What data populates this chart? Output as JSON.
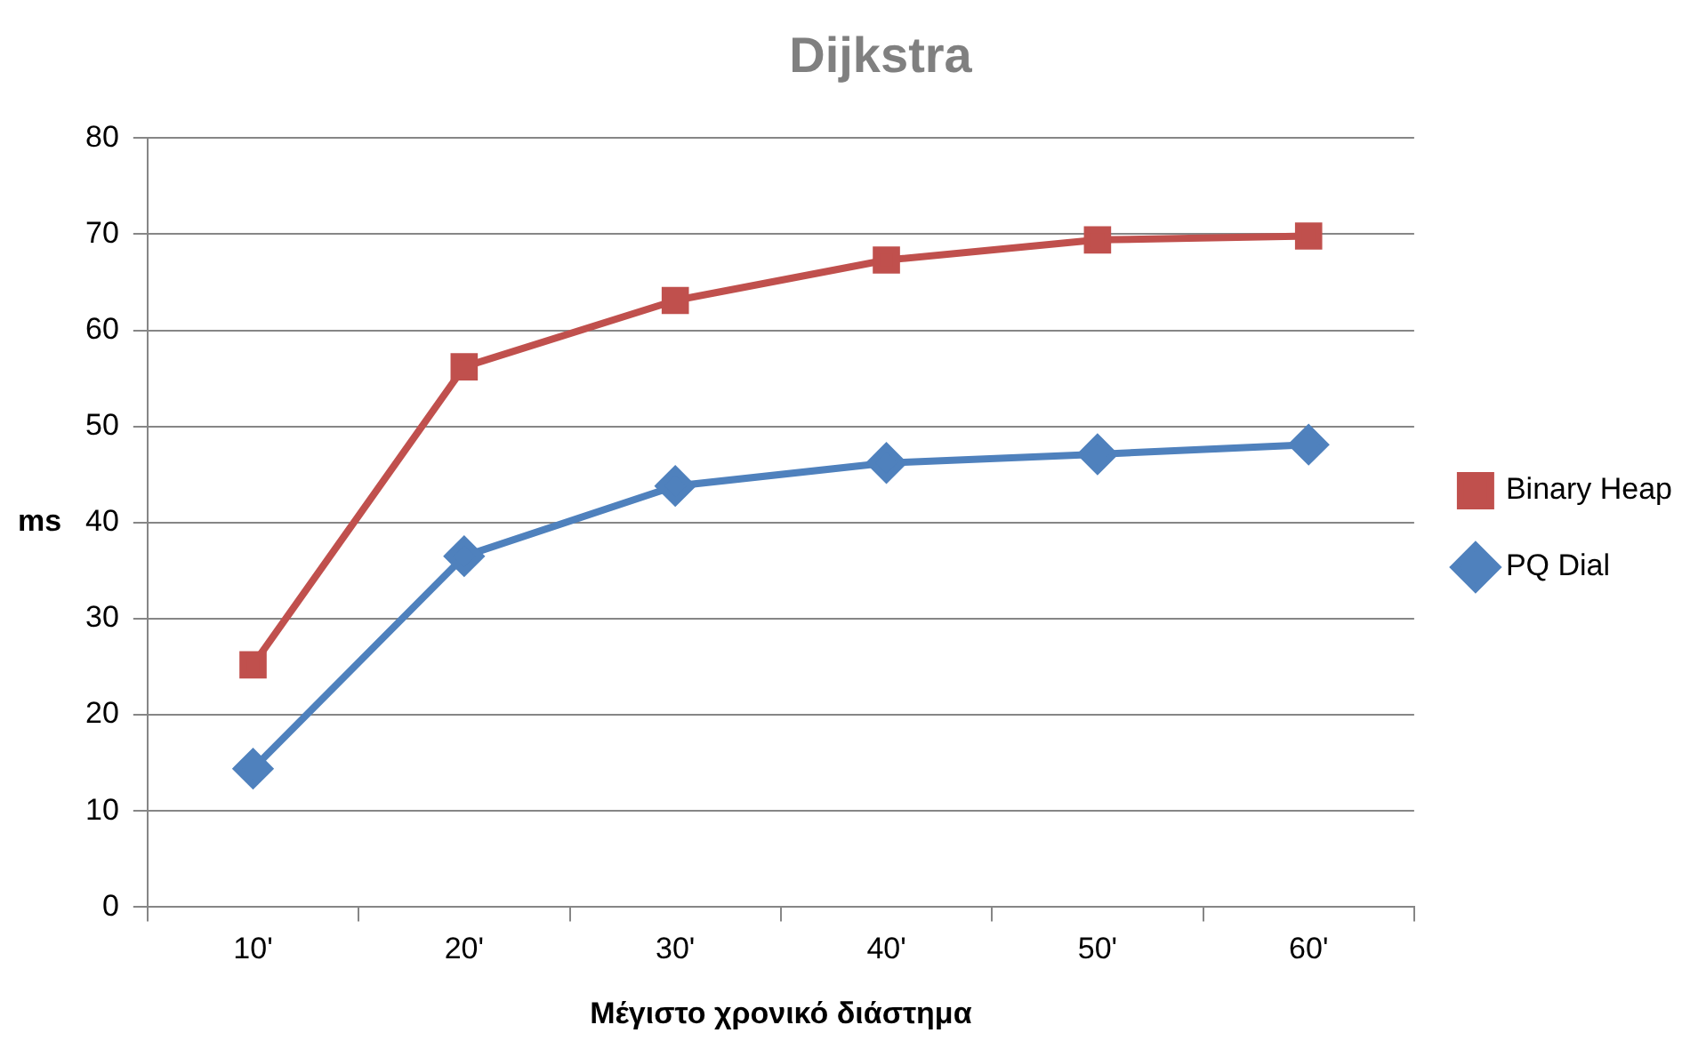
{
  "chart_data": {
    "type": "line",
    "title": "Dijkstra",
    "xlabel": "Μέγιστο χρονικό διάστημα",
    "ylabel": "ms",
    "categories": [
      "10'",
      "20'",
      "30'",
      "40'",
      "50'",
      "60'"
    ],
    "series": [
      {
        "name": "Binary Heap",
        "color": "#c0504d",
        "marker": "square",
        "values": [
          25.2,
          56.2,
          63.1,
          67.3,
          69.4,
          69.8
        ]
      },
      {
        "name": "PQ Dial",
        "color": "#4f81bd",
        "marker": "diamond",
        "values": [
          14.4,
          36.5,
          43.8,
          46.2,
          47.1,
          48.1
        ]
      }
    ],
    "ylim": [
      0,
      80
    ],
    "yticks": [
      0,
      10,
      20,
      30,
      40,
      50,
      60,
      70,
      80
    ],
    "grid": "y",
    "legend": "right",
    "line_style": "solid"
  }
}
